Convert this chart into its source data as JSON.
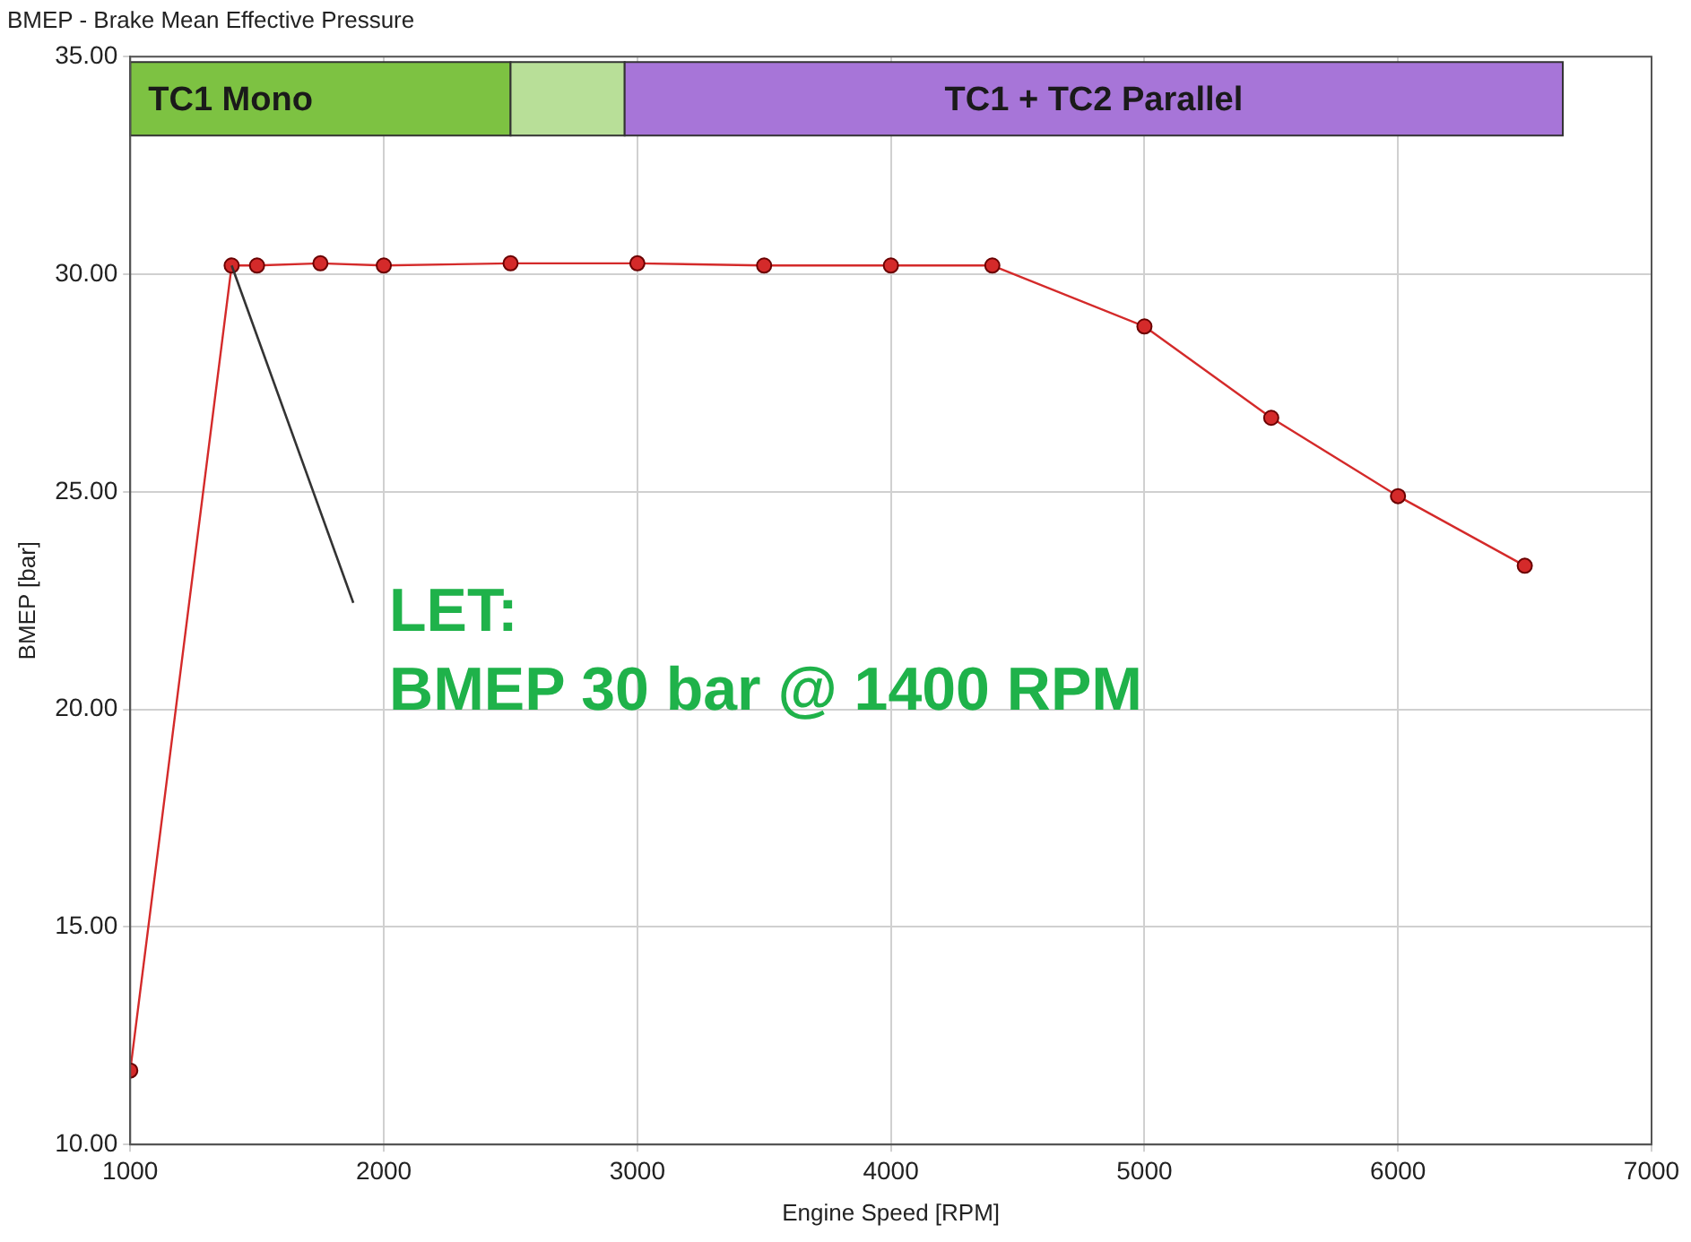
{
  "chart_data": {
    "type": "line",
    "title": "BMEP - Brake Mean Effective Pressure",
    "xlabel": "Engine Speed [RPM]",
    "ylabel": "BMEP [bar]",
    "x": [
      1000,
      1400,
      1500,
      1750,
      2000,
      2500,
      3000,
      3500,
      4000,
      4400,
      5000,
      5500,
      6000,
      6500
    ],
    "series": [
      {
        "color": "#d42a2a",
        "values": [
          11.7,
          30.2,
          30.2,
          30.25,
          30.2,
          30.25,
          30.25,
          30.2,
          30.2,
          30.2,
          28.8,
          26.7,
          24.9,
          23.3
        ]
      }
    ],
    "xlim": [
      1000,
      7000
    ],
    "xticks": [
      1000,
      2000,
      3000,
      4000,
      5000,
      6000,
      7000
    ],
    "ylim": [
      10,
      35
    ],
    "yticks": [
      {
        "value": 10,
        "label": "10.00"
      },
      {
        "value": 15,
        "label": "15.00"
      },
      {
        "value": 20,
        "label": "20.00"
      },
      {
        "value": 25,
        "label": "25.00"
      },
      {
        "value": 30,
        "label": "30.00"
      },
      {
        "value": 35,
        "label": "35.00"
      }
    ],
    "bands": [
      {
        "axis": "x",
        "from": 1000,
        "to": 2500,
        "label": "TC1 Mono",
        "color": "#7dc242"
      },
      {
        "axis": "x",
        "from": 2500,
        "to": 2950,
        "label": null,
        "color": "#b8df98"
      },
      {
        "axis": "x",
        "from": 2950,
        "to": 6650,
        "label": "TC1 + TC2 Parallel",
        "color": "#a775d8"
      }
    ],
    "annotations": [
      {
        "text": "LET:\nBMEP 30 bar @ 1400 RPM",
        "x": 1400,
        "y": 30.2
      }
    ],
    "grid": true,
    "legend": false,
    "marker": "circle",
    "line_style": "solid"
  }
}
